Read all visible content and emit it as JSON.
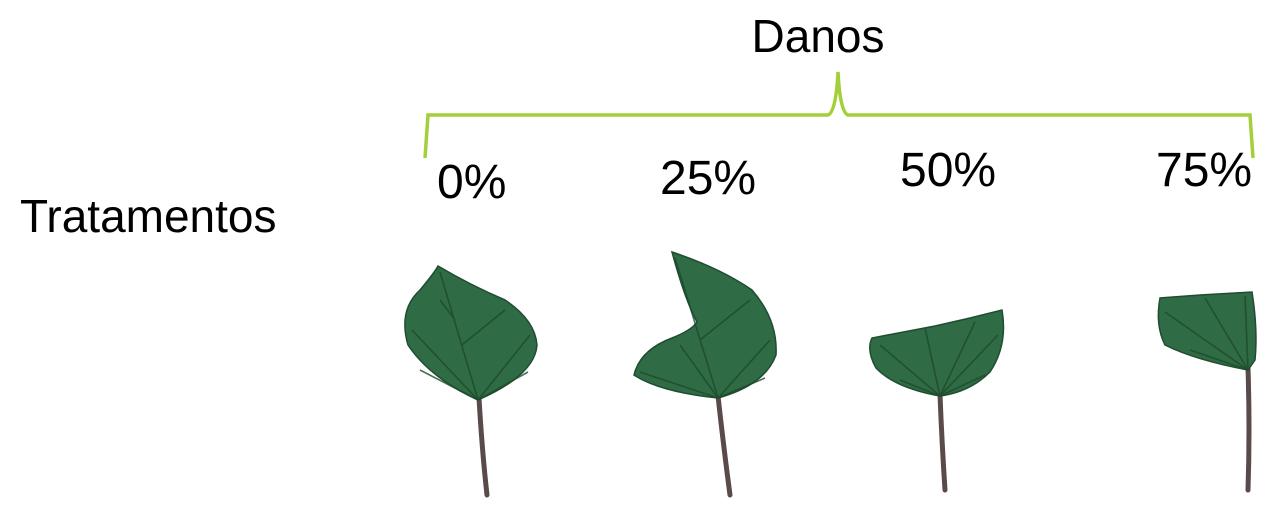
{
  "title": "Danos",
  "row_label": "Tratamentos",
  "levels": [
    "0%",
    "25%",
    "50%",
    "75%"
  ]
}
